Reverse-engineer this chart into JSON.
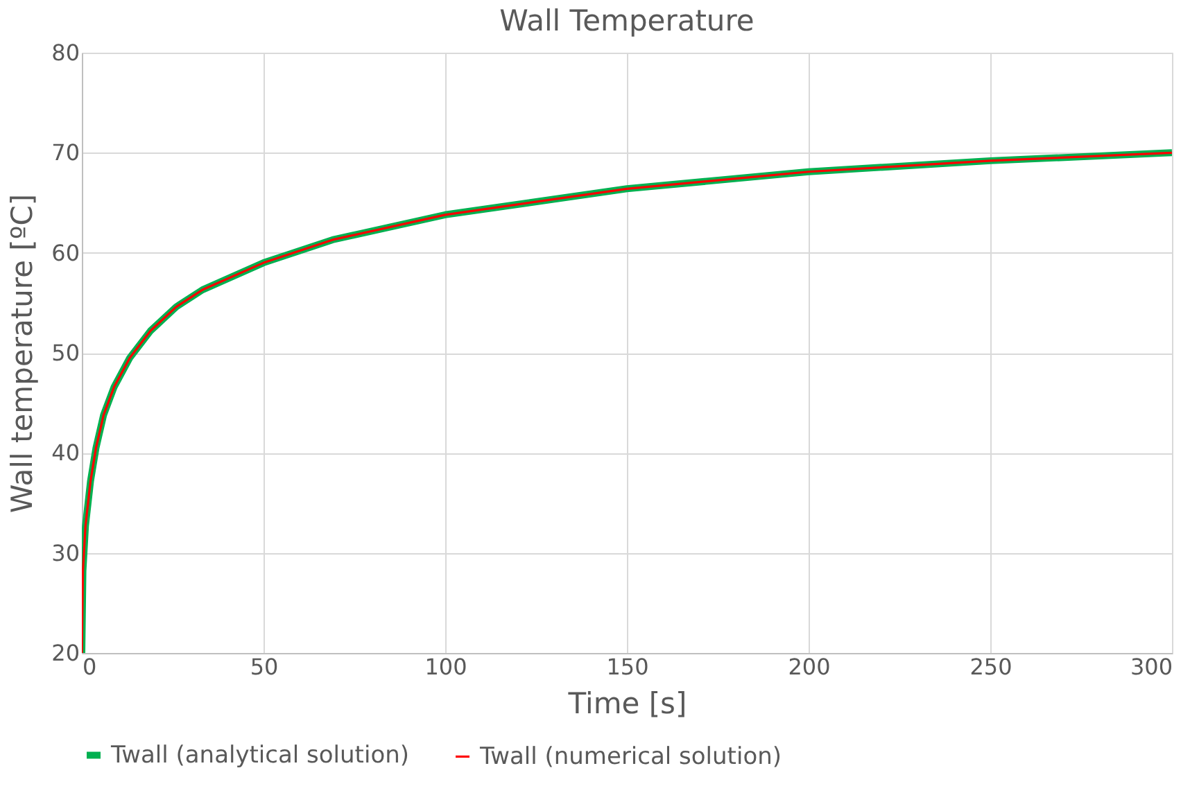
{
  "chart_data": {
    "type": "line",
    "title": "Wall Temperature",
    "xlabel": "Time [s]",
    "ylabel": "Wall temperature [ºC]",
    "x": [
      0,
      0.3,
      1,
      2.4,
      3.9,
      6,
      8.9,
      13.2,
      18.9,
      26,
      33.2,
      50,
      69,
      100,
      150,
      200,
      250,
      300
    ],
    "series": [
      {
        "name": "Twall (analytical solution)",
        "color": "#00b050",
        "values": [
          20,
          28.2,
          32.7,
          37.2,
          40.5,
          43.8,
          46.6,
          49.5,
          52.2,
          54.6,
          56.3,
          59.0,
          61.3,
          63.8,
          66.4,
          68.1,
          69.2,
          70.0
        ]
      },
      {
        "name": "Twall (numerical solution)",
        "color": "#ff0000",
        "values": [
          20,
          28.2,
          32.7,
          37.2,
          40.5,
          43.8,
          46.6,
          49.5,
          52.2,
          54.6,
          56.3,
          59.0,
          61.3,
          63.8,
          66.4,
          68.1,
          69.2,
          70.0
        ]
      }
    ],
    "xlim": [
      0,
      300
    ],
    "xticks": [
      0,
      50,
      100,
      150,
      200,
      250,
      300
    ],
    "ylim": [
      20,
      80
    ],
    "yticks": [
      20,
      30,
      40,
      50,
      60,
      70,
      80
    ],
    "grid": true,
    "legend": "bottom",
    "marker": "none",
    "line_style": "solid"
  }
}
